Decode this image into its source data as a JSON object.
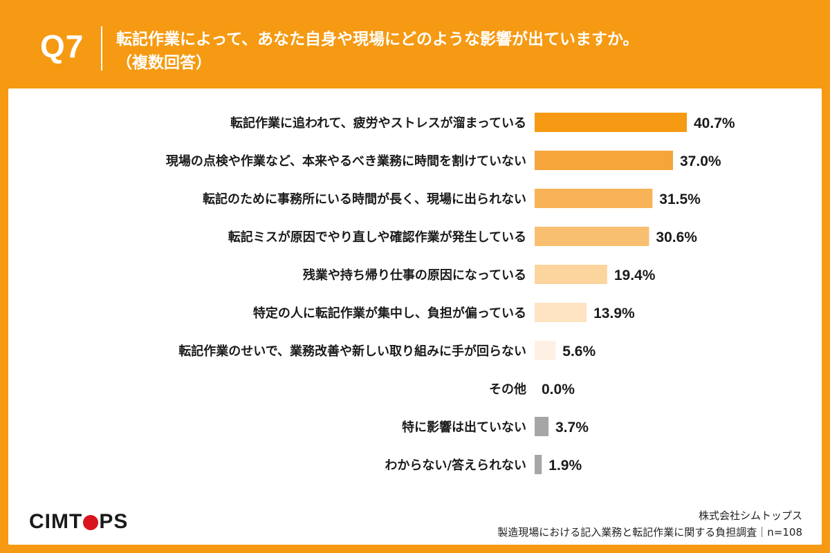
{
  "header": {
    "question_number": "Q7",
    "title_line1": "転記作業によって、あなた自身や現場にどのような影響が出ていますか。",
    "title_line2": "（複数回答）"
  },
  "footer": {
    "logo_pre": "CIMT",
    "logo_post": "PS",
    "company": "株式会社シムトップス",
    "survey": "製造現場における記入業務と転記作業に関する負担調査｜n=108"
  },
  "colors": {
    "background": "#f59a12",
    "panel": "#ffffff",
    "text": "#1a1a1a",
    "logo_accent": "#d9141e"
  },
  "chart_data": {
    "type": "bar",
    "orientation": "horizontal",
    "value_suffix": "%",
    "categories": [
      "転記作業に追われて、疲労やストレスが溜まっている",
      "現場の点検や作業など、本来やるべき業務に時間を割けていない",
      "転記のために事務所にいる時間が長く、現場に出られない",
      "転記ミスが原因でやり直しや確認作業が発生している",
      "残業や持ち帰り仕事の原因になっている",
      "特定の人に転記作業が集中し、負担が偏っている",
      "転記作業のせいで、業務改善や新しい取り組みに手が回らない",
      "その他",
      "特に影響は出ていない",
      "わからない/答えられない"
    ],
    "values": [
      40.7,
      37.0,
      31.5,
      30.6,
      19.4,
      13.9,
      5.6,
      0.0,
      3.7,
      1.9
    ],
    "labels": [
      "40.7%",
      "37.0%",
      "31.5%",
      "30.6%",
      "19.4%",
      "13.9%",
      "5.6%",
      "0.0%",
      "3.7%",
      "1.9%"
    ],
    "bar_colors": [
      "#f59a12",
      "#f6a53a",
      "#f8b356",
      "#f9bf70",
      "#fcd59e",
      "#fde3c2",
      "#fef1e3",
      "#ffffff",
      "#a6a6a6",
      "#a6a6a6"
    ],
    "xlim": [
      0,
      40.7
    ],
    "grid": false,
    "legend": "none"
  }
}
